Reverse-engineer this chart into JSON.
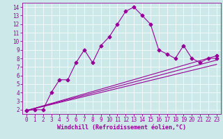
{
  "line1_x": [
    0,
    1,
    2,
    3,
    4,
    5,
    6,
    7,
    8,
    9,
    10,
    11,
    12,
    13,
    14,
    15,
    16,
    17,
    18,
    19,
    20,
    21,
    22,
    23
  ],
  "line1_y": [
    1.9,
    2.0,
    2.0,
    4.0,
    5.5,
    5.5,
    7.5,
    9.0,
    7.5,
    9.5,
    10.5,
    12.0,
    13.5,
    14.0,
    13.0,
    12.0,
    9.0,
    8.5,
    8.0,
    9.5,
    8.0,
    7.5,
    8.0,
    8.0
  ],
  "line2_x": [
    0,
    23
  ],
  "line2_y": [
    1.9,
    8.3
  ],
  "line3_x": [
    0,
    23
  ],
  "line3_y": [
    1.9,
    7.8
  ],
  "line4_x": [
    0,
    23
  ],
  "line4_y": [
    1.9,
    7.3
  ],
  "line_color": "#990099",
  "bg_color": "#cce8e8",
  "grid_color": "#ffffff",
  "xlabel": "Windchill (Refroidissement éolien,°C)",
  "xlim": [
    -0.5,
    23.5
  ],
  "ylim": [
    1.5,
    14.5
  ],
  "xticks": [
    0,
    1,
    2,
    3,
    4,
    5,
    6,
    7,
    8,
    9,
    10,
    11,
    12,
    13,
    14,
    15,
    16,
    17,
    18,
    19,
    20,
    21,
    22,
    23
  ],
  "yticks": [
    2,
    3,
    4,
    5,
    6,
    7,
    8,
    9,
    10,
    11,
    12,
    13,
    14
  ],
  "tick_fontsize": 5.5,
  "xlabel_fontsize": 6.0,
  "marker": "D",
  "marker_size": 2.5
}
